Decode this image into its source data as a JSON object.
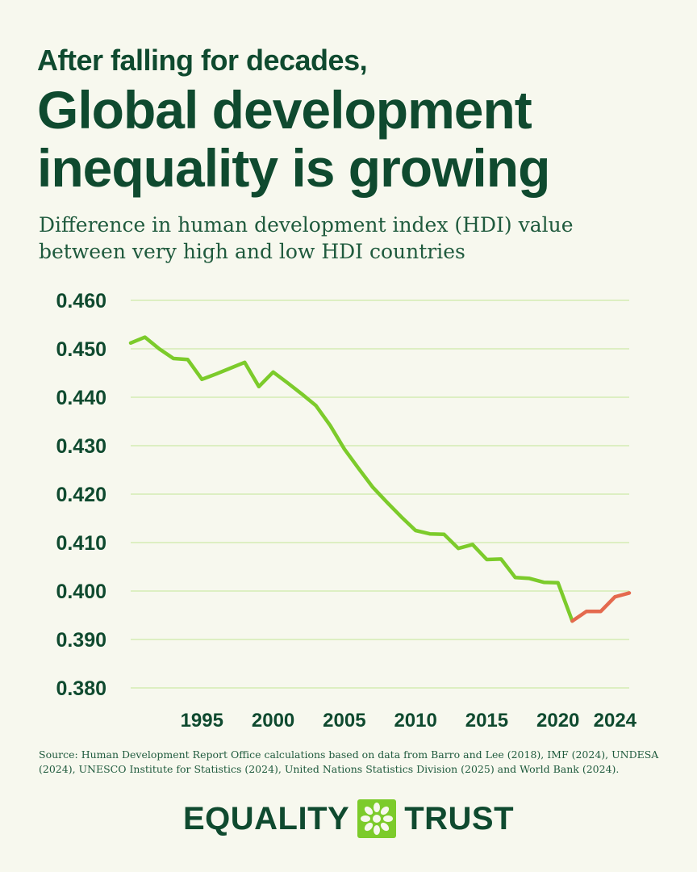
{
  "kicker": "After falling for decades,",
  "headline": [
    "Global development",
    "inequality is growing"
  ],
  "subtitle": [
    "Difference in human development index (HDI) value",
    "between very high and low HDI countries"
  ],
  "source": "Source: Human Development Report Office calculations based on data from Barro and Lee (2018), IMF (2024), UNDESA (2024), UNESCO Institute for Statistics (2024), United Nations Statistics Division (2025) and World Bank (2024).",
  "logo": {
    "left_word": "EQUALITY",
    "right_word": "TRUST",
    "icon": "asterisk-flower-icon"
  },
  "colors": {
    "background": "#f7f8ee",
    "text": "#0f4a2f",
    "falling_line": "#7ccb2b",
    "rising_line": "#e46a4e",
    "grid": "#cde9a8"
  },
  "chart_data": {
    "type": "line",
    "title": "",
    "xlabel": "",
    "ylabel": "",
    "ylim": [
      0.38,
      0.46
    ],
    "xlim": [
      1990,
      2025
    ],
    "yticks": [
      "0.460",
      "0.450",
      "0.440",
      "0.430",
      "0.420",
      "0.410",
      "0.400",
      "0.390",
      "0.380"
    ],
    "xticks": [
      "1995",
      "2000",
      "2005",
      "2010",
      "2015",
      "2020",
      "2024"
    ],
    "grid": true,
    "legend": "none",
    "series": [
      {
        "color": "#7ccb2b",
        "points": [
          [
            1990,
            0.4512
          ],
          [
            1991,
            0.4524
          ],
          [
            1992,
            0.45
          ],
          [
            1993,
            0.448
          ],
          [
            1994,
            0.4478
          ],
          [
            1995,
            0.4437
          ],
          [
            1996,
            0.4448
          ],
          [
            1997,
            0.446
          ],
          [
            1998,
            0.4472
          ],
          [
            1999,
            0.4422
          ],
          [
            2000,
            0.4452
          ],
          [
            2001,
            0.443
          ],
          [
            2002,
            0.4407
          ],
          [
            2003,
            0.4383
          ],
          [
            2004,
            0.4342
          ],
          [
            2005,
            0.4293
          ],
          [
            2006,
            0.4253
          ],
          [
            2007,
            0.4214
          ],
          [
            2008,
            0.4183
          ],
          [
            2009,
            0.4153
          ],
          [
            2010,
            0.4125
          ],
          [
            2011,
            0.4118
          ],
          [
            2012,
            0.4117
          ],
          [
            2013,
            0.4088
          ],
          [
            2014,
            0.4096
          ],
          [
            2015,
            0.4065
          ],
          [
            2016,
            0.4066
          ],
          [
            2017,
            0.4028
          ],
          [
            2018,
            0.4026
          ],
          [
            2019,
            0.4018
          ],
          [
            2020,
            0.4017
          ],
          [
            2021,
            0.3938
          ]
        ]
      },
      {
        "color": "#e46a4e",
        "points": [
          [
            2021,
            0.3938
          ],
          [
            2022,
            0.3958
          ],
          [
            2023,
            0.3958
          ],
          [
            2024,
            0.3988
          ],
          [
            2025,
            0.3996
          ]
        ]
      }
    ]
  }
}
